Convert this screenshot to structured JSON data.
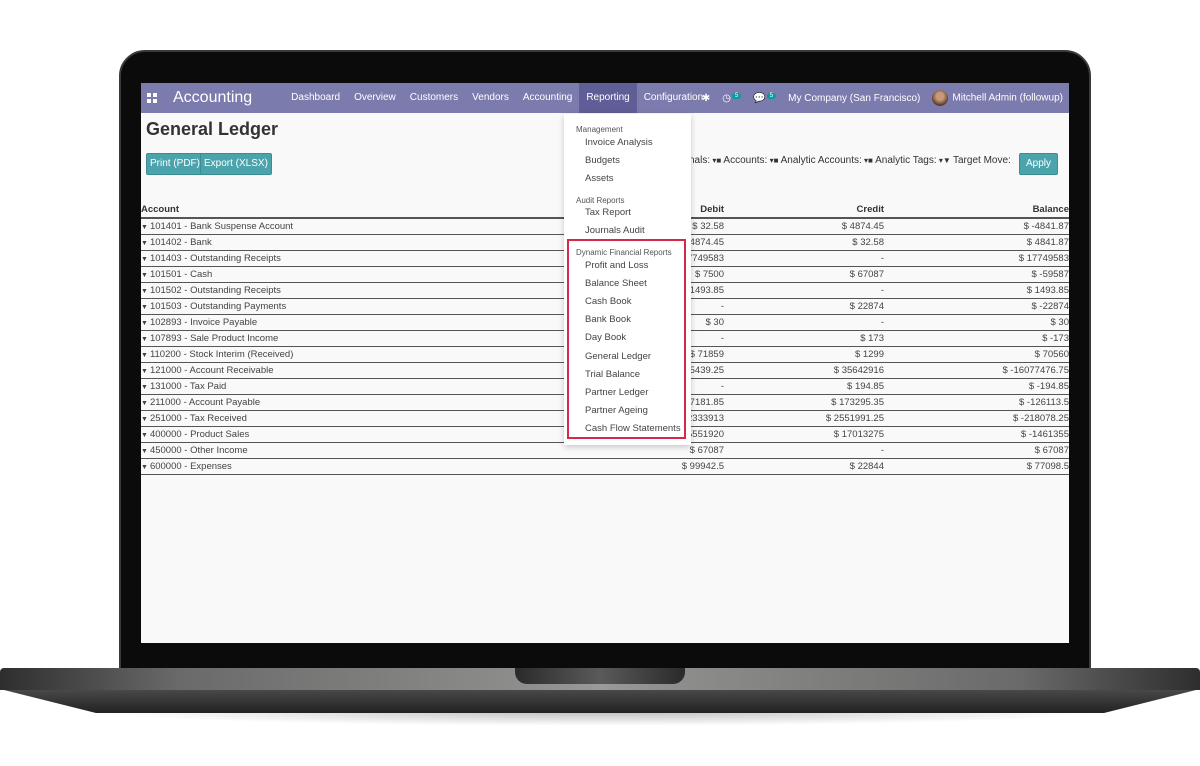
{
  "app": {
    "title": "Accounting",
    "menus": [
      "Dashboard",
      "Overview",
      "Customers",
      "Vendors",
      "Accounting",
      "Reporting",
      "Configuration"
    ],
    "active_menu": "Reporting",
    "activity_count": "5",
    "message_count": "5",
    "company": "My Company (San Francisco)",
    "user": "Mitchell Admin (followup)",
    "accent": "#7c7bad"
  },
  "page": {
    "title": "General Ledger",
    "print_label": "Print (PDF)",
    "export_label": "Export (XLSX)",
    "filters": [
      "nals:",
      "Accounts:",
      "Analytic Accounts:",
      "Analytic Tags:",
      "Target Move:"
    ],
    "apply_label": "Apply"
  },
  "table": {
    "headers": [
      "Account",
      "Debit",
      "Credit",
      "Balance"
    ],
    "rows": [
      [
        "101401 - Bank Suspense Account",
        "$ 32.58",
        "$ 4874.45",
        "$ -4841.87"
      ],
      [
        "101402 - Bank",
        "$ 4874.45",
        "$ 32.58",
        "$ 4841.87"
      ],
      [
        "101403 - Outstanding Receipts",
        "$ 17749583",
        "-",
        "$ 17749583"
      ],
      [
        "101501 - Cash",
        "$ 7500",
        "$ 67087",
        "$ -59587"
      ],
      [
        "101502 - Outstanding Receipts",
        "$ 1493.85",
        "-",
        "$ 1493.85"
      ],
      [
        "101503 - Outstanding Payments",
        "-",
        "$ 22874",
        "$ -22874"
      ],
      [
        "102893 - Invoice Payable",
        "$ 30",
        "-",
        "$ 30"
      ],
      [
        "107893 - Sale Product Income",
        "-",
        "$ 173",
        "$ -173"
      ],
      [
        "110200 - Stock Interim (Received)",
        "$ 71859",
        "$ 1299",
        "$ 70560"
      ],
      [
        "121000 - Account Receivable",
        "$ 19565439.25",
        "$ 35642916",
        "$ -16077476.75"
      ],
      [
        "131000 - Tax Paid",
        "-",
        "$ 194.85",
        "$ -194.85"
      ],
      [
        "211000 - Account Payable",
        "$ 47181.85",
        "$ 173295.35",
        "$ -126113.5"
      ],
      [
        "251000 - Tax Received",
        "$ 2333913",
        "$ 2551991.25",
        "$ -218078.25"
      ],
      [
        "400000 - Product Sales",
        "$ 15551920",
        "$ 17013275",
        "$ -1461355"
      ],
      [
        "450000 - Other Income",
        "$ 67087",
        "-",
        "$ 67087"
      ],
      [
        "600000 - Expenses",
        "$ 99942.5",
        "$ 22844",
        "$ 77098.5"
      ]
    ]
  },
  "dropdown": {
    "sections": [
      {
        "header": "Management",
        "items": [
          "Invoice Analysis",
          "Budgets",
          "Assets"
        ]
      },
      {
        "header": "Audit Reports",
        "items": [
          "Tax Report",
          "Journals Audit"
        ]
      },
      {
        "header": "Dynamic Financial Reports",
        "items": [
          "Profit and Loss",
          "Balance Sheet",
          "Cash Book",
          "Bank Book",
          "Day Book",
          "General Ledger",
          "Trial Balance",
          "Partner Ledger",
          "Partner Ageing",
          "Cash Flow Statements"
        ]
      }
    ],
    "highlight_color": "#d6294a"
  }
}
